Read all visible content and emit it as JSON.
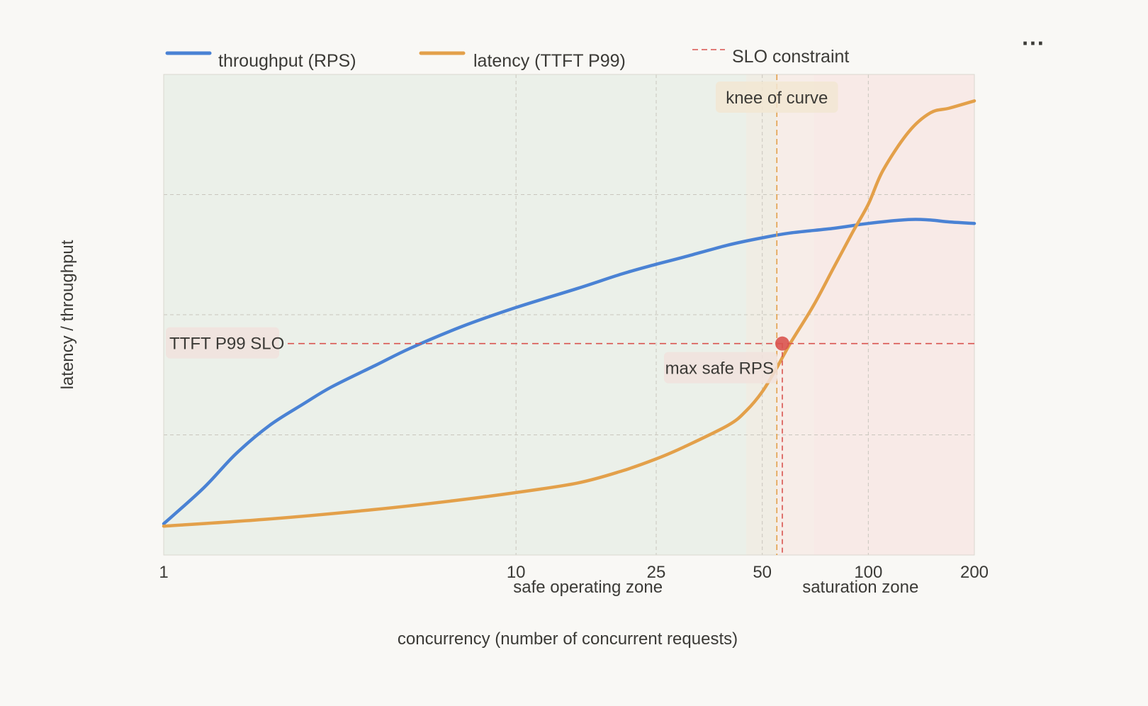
{
  "menu": {
    "more_label": "···"
  },
  "chart_data": {
    "type": "line",
    "title": "",
    "xlabel": "concurrency (number of concurrent requests)",
    "ylabel": "latency / throughput",
    "x_scale": "log",
    "xlim": [
      1,
      200
    ],
    "ylim": [
      0,
      100
    ],
    "x_ticks": [
      1,
      10,
      25,
      50,
      100,
      200
    ],
    "x_tick_labels": [
      "1",
      "10",
      "25",
      "50",
      "100",
      "200"
    ],
    "y_gridlines": [
      25,
      50,
      75
    ],
    "grid": true,
    "legend": {
      "position": "top",
      "items": [
        {
          "label": "throughput (RPS)",
          "style": "solid",
          "color": "#4a82d4"
        },
        {
          "label": "latency (TTFT P99)",
          "style": "solid",
          "color": "#e3a04a"
        },
        {
          "label": "SLO constraint",
          "style": "dashed",
          "color": "#d9534f"
        }
      ]
    },
    "series": [
      {
        "name": "throughput (RPS)",
        "color": "#4a82d4",
        "points": [
          [
            1,
            6.5
          ],
          [
            1.3,
            14
          ],
          [
            1.6,
            21
          ],
          [
            2,
            27
          ],
          [
            2.5,
            31.5
          ],
          [
            3,
            35
          ],
          [
            4,
            39.5
          ],
          [
            5,
            43
          ],
          [
            7,
            47.5
          ],
          [
            10,
            51.5
          ],
          [
            15,
            55.5
          ],
          [
            20,
            58.5
          ],
          [
            25,
            60.5
          ],
          [
            30,
            62
          ],
          [
            40,
            64.5
          ],
          [
            50,
            66
          ],
          [
            60,
            67
          ],
          [
            80,
            68
          ],
          [
            100,
            69
          ],
          [
            130,
            69.8
          ],
          [
            150,
            69.7
          ],
          [
            170,
            69.3
          ],
          [
            200,
            69
          ]
        ]
      },
      {
        "name": "latency (TTFT P99)",
        "color": "#e3a04a",
        "points": [
          [
            1,
            6
          ],
          [
            2,
            7.5
          ],
          [
            4,
            9.5
          ],
          [
            7,
            11.5
          ],
          [
            10,
            13
          ],
          [
            15,
            15
          ],
          [
            20,
            17.5
          ],
          [
            25,
            20
          ],
          [
            30,
            22.5
          ],
          [
            40,
            27
          ],
          [
            45,
            30
          ],
          [
            50,
            34
          ],
          [
            55,
            39
          ],
          [
            60,
            44
          ],
          [
            70,
            52
          ],
          [
            80,
            60
          ],
          [
            90,
            67
          ],
          [
            100,
            73
          ],
          [
            110,
            80
          ],
          [
            130,
            88
          ],
          [
            150,
            92
          ],
          [
            170,
            93
          ],
          [
            200,
            94.5
          ]
        ]
      }
    ],
    "slo_line": {
      "label": "TTFT P99 SLO",
      "y": 44,
      "color": "#d9534f"
    },
    "knee_line": {
      "label": "knee of curve",
      "x": 55,
      "color": "#e3a04a"
    },
    "max_safe_point": {
      "label": "max safe RPS",
      "x": 57,
      "y": 44,
      "color": "#d9534f"
    },
    "zones": [
      {
        "label": "safe operating zone",
        "x_start": 1,
        "x_end": 45,
        "color": "#e6eee4"
      },
      {
        "label": "",
        "x_start": 45,
        "x_end": 55,
        "color": "#ece9dd"
      },
      {
        "label": "",
        "x_start": 55,
        "x_end": 70,
        "color": "#f5e9e3"
      },
      {
        "label": "saturation zone",
        "x_start": 70,
        "x_end": 200,
        "color": "#f7e6e2"
      }
    ],
    "zone_label_positions": {
      "safe operating zone": 16,
      "saturation zone": 95
    }
  }
}
